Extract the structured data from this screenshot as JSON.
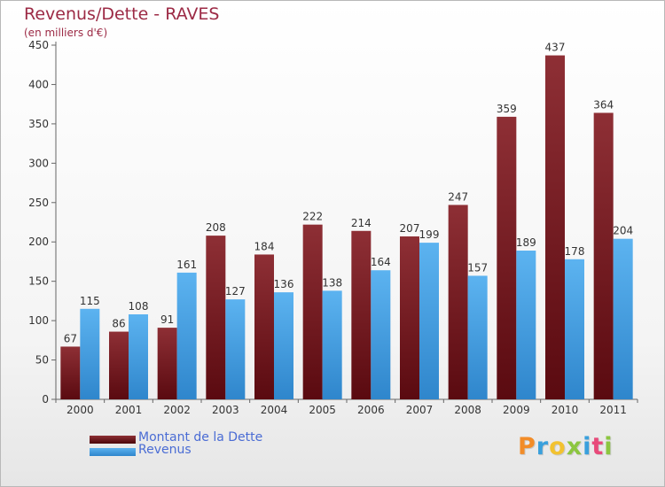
{
  "title": "Revenus/Dette - RAVES",
  "subtitle": "(en milliers d'€)",
  "colors": {
    "title": "#9c2a45",
    "dette": "#7a1e26",
    "revenus": "#4aa3e6",
    "legend_text": "#4a6cd4"
  },
  "legend": {
    "dette": "Montant de la Dette",
    "revenus": "Revenus"
  },
  "logo": {
    "letters": [
      "P",
      "r",
      "o",
      "x",
      "i",
      "t",
      "i"
    ],
    "colors": [
      "#f28c28",
      "#3aa0dc",
      "#f2c230",
      "#8cc63f",
      "#3aa0dc",
      "#e84a7a",
      "#8cc63f"
    ]
  },
  "chart_data": {
    "type": "bar",
    "categories": [
      "2000",
      "2001",
      "2002",
      "2003",
      "2004",
      "2005",
      "2006",
      "2007",
      "2008",
      "2009",
      "2010",
      "2011"
    ],
    "series": [
      {
        "name": "Montant de la Dette",
        "values": [
          67,
          86,
          91,
          208,
          184,
          222,
          214,
          207,
          247,
          359,
          437,
          364
        ]
      },
      {
        "name": "Revenus",
        "values": [
          115,
          108,
          161,
          127,
          136,
          138,
          164,
          199,
          157,
          189,
          178,
          204
        ]
      }
    ],
    "ylim": [
      0,
      450
    ],
    "yticks": [
      0,
      50,
      100,
      150,
      200,
      250,
      300,
      350,
      400,
      450
    ],
    "grid": false,
    "legend_position": "bottom-left"
  }
}
